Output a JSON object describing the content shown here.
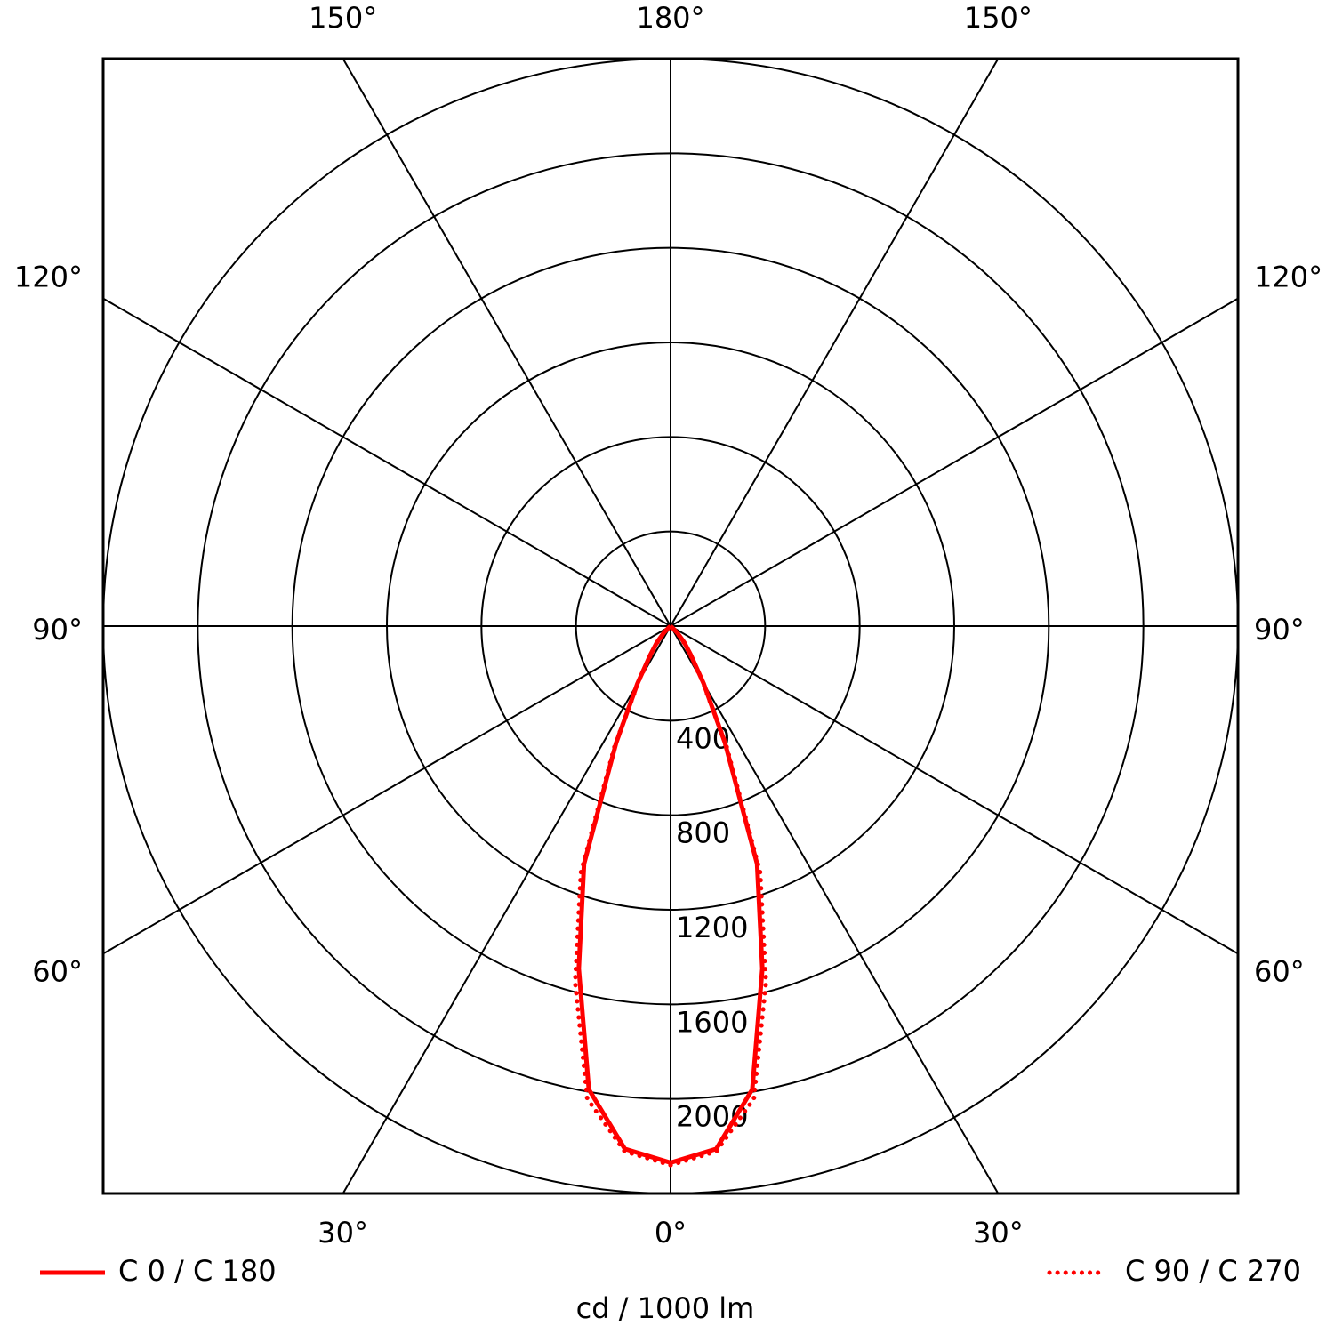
{
  "chart_data": {
    "type": "polar",
    "unit_label": "cd / 1000 lm",
    "x": [
      0,
      5,
      10,
      15,
      20,
      25,
      30,
      35,
      40,
      45,
      50,
      55,
      60,
      65,
      70,
      75,
      80,
      85,
      90
    ],
    "series": [
      {
        "name": "C 0 / C 180",
        "color": "#ff0000",
        "style": "solid",
        "values": [
          2270,
          2220,
          1990,
          1500,
          1070,
          545,
          280,
          150,
          90,
          40,
          10,
          0,
          0,
          0,
          0,
          0,
          0,
          0,
          0
        ]
      },
      {
        "name": "C 90 / C 270",
        "color": "#ff0000",
        "style": "dotted",
        "values": [
          2280,
          2230,
          2030,
          1560,
          1110,
          560,
          270,
          140,
          80,
          35,
          10,
          0,
          0,
          0,
          0,
          0,
          0,
          0,
          0
        ]
      }
    ],
    "rlim": [
      0,
      2400
    ],
    "rticks": [
      400,
      800,
      1200,
      1600,
      2000
    ],
    "angle_ticks": [
      {
        "value": 0,
        "label": "0°"
      },
      {
        "value": 30,
        "label": "30°"
      },
      {
        "value": 60,
        "label": "60°"
      },
      {
        "value": 90,
        "label": "90°"
      },
      {
        "value": 120,
        "label": "120°"
      },
      {
        "value": 150,
        "label": "150°"
      },
      {
        "value": 180,
        "label": "180°"
      }
    ]
  }
}
